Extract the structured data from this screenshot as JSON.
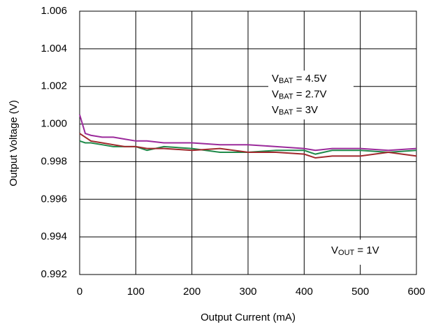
{
  "chart_data": {
    "type": "line",
    "xlabel": "Output Current (mA)",
    "ylabel": "Output Voltage (V)",
    "annotation": "VOUT = 1V",
    "x": [
      0,
      10,
      20,
      40,
      60,
      80,
      100,
      120,
      150,
      200,
      250,
      300,
      350,
      400,
      420,
      450,
      500,
      550,
      600
    ],
    "series": [
      {
        "name": "VBAT = 4.5V",
        "color": "#9b2a9b",
        "values": [
          1.0005,
          0.9995,
          0.9994,
          0.9993,
          0.9993,
          0.9992,
          0.9991,
          0.9991,
          0.999,
          0.999,
          0.9989,
          0.9989,
          0.9988,
          0.9987,
          0.9986,
          0.9987,
          0.9987,
          0.9986,
          0.9987
        ]
      },
      {
        "name": "VBAT = 2.7V",
        "color": "#1f8a4a",
        "values": [
          0.9991,
          0.999,
          0.999,
          0.9989,
          0.9988,
          0.9988,
          0.9988,
          0.9986,
          0.9988,
          0.9987,
          0.9985,
          0.9985,
          0.9986,
          0.9986,
          0.9984,
          0.9986,
          0.9986,
          0.9985,
          0.9986
        ]
      },
      {
        "name": "VBAT = 3V",
        "color": "#a0282c",
        "values": [
          0.9995,
          0.9993,
          0.9991,
          0.999,
          0.9989,
          0.9988,
          0.9988,
          0.9987,
          0.9987,
          0.9986,
          0.9987,
          0.9985,
          0.9985,
          0.9984,
          0.9982,
          0.9983,
          0.9983,
          0.9985,
          0.9983
        ]
      }
    ],
    "xlim": [
      0,
      600
    ],
    "xticks": [
      0,
      100,
      200,
      300,
      400,
      500,
      600
    ],
    "ylim": [
      0.992,
      1.006
    ],
    "yticks": [
      0.992,
      0.994,
      0.996,
      0.998,
      {
        "value": 1,
        "label": "1.000"
      },
      1.002,
      1.004,
      1.006
    ],
    "grid": true
  }
}
